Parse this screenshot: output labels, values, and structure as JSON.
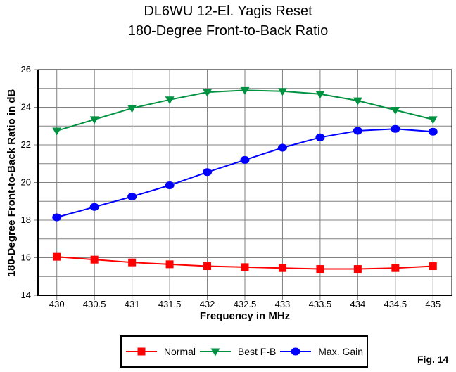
{
  "figure_label": "Fig. 14",
  "colors": {
    "background": "#FFFFFF",
    "grid": "#808080",
    "axis": "#000000",
    "normal": "#FF0000",
    "best_fb": "#009240",
    "max_gain": "#0000FF"
  },
  "chart_data": {
    "type": "line",
    "title": "DL6WU 12-El. Yagis Reset",
    "subtitle": "180-Degree Front-to-Back Ratio",
    "xlabel": "Frequency in MHz",
    "ylabel": "180-Degree Front-to-Back Ratio in dB",
    "x": [
      430,
      430.5,
      431,
      431.5,
      432,
      432.5,
      433,
      433.5,
      434,
      434.5,
      435
    ],
    "x_tick_labels": [
      "430",
      "430.5",
      "431",
      "431.5",
      "432",
      "432.5",
      "433",
      "433.5",
      "434",
      "434.5",
      "435"
    ],
    "ylim": [
      14,
      26
    ],
    "y_major_ticks": [
      14,
      16,
      18,
      20,
      22,
      24,
      26
    ],
    "y_grid_interval": 1,
    "grid": true,
    "legend_position": "bottom-center",
    "series": [
      {
        "name": "Normal",
        "color": "#FF0000",
        "marker": "square",
        "values": [
          16.05,
          15.9,
          15.75,
          15.65,
          15.55,
          15.5,
          15.45,
          15.4,
          15.4,
          15.45,
          15.55
        ]
      },
      {
        "name": "Best F-B",
        "color": "#009240",
        "marker": "triangle-down",
        "values": [
          22.75,
          23.35,
          23.95,
          24.4,
          24.8,
          24.9,
          24.85,
          24.7,
          24.35,
          23.85,
          23.35
        ]
      },
      {
        "name": "Max. Gain",
        "color": "#0000FF",
        "marker": "circle",
        "values": [
          18.15,
          18.7,
          19.25,
          19.85,
          20.55,
          21.2,
          21.85,
          22.4,
          22.75,
          22.85,
          22.7
        ]
      }
    ]
  }
}
